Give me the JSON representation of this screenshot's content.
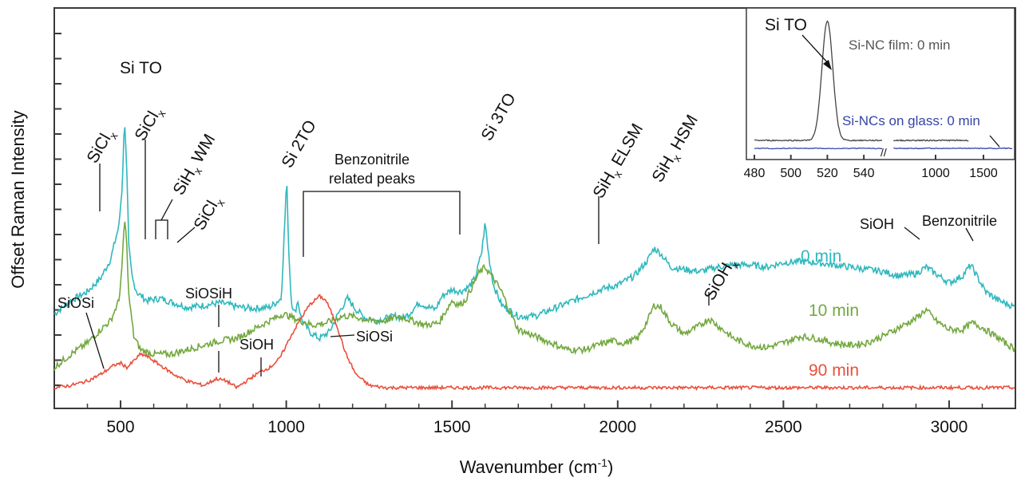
{
  "chart_data": [
    {
      "type": "line",
      "title": "",
      "xlabel_main": "Wavenumber (cm",
      "xlabel_sup": "-1",
      "xlabel_close": ")",
      "ylabel": "Offset Raman Intensity",
      "xlim": [
        300,
        3200
      ],
      "x_ticks": [
        {
          "value": 500,
          "label": "500"
        },
        {
          "value": 1000,
          "label": "1000"
        },
        {
          "value": 1500,
          "label": "1500"
        },
        {
          "value": 2000,
          "label": "2000"
        },
        {
          "value": 2500,
          "label": "2500"
        },
        {
          "value": 3000,
          "label": "3000"
        }
      ],
      "series": [
        {
          "name": "0 min",
          "color": "#2fb8bd",
          "offset": 1.0,
          "points": [
            [
              300,
              0.66
            ],
            [
              350,
              0.78
            ],
            [
              400,
              0.86
            ],
            [
              440,
              0.98
            ],
            [
              470,
              1.15
            ],
            [
              495,
              1.45
            ],
            [
              505,
              1.8
            ],
            [
              512,
              2.42
            ],
            [
              518,
              2.02
            ],
            [
              525,
              1.25
            ],
            [
              535,
              0.98
            ],
            [
              550,
              0.85
            ],
            [
              580,
              0.78
            ],
            [
              620,
              0.8
            ],
            [
              660,
              0.76
            ],
            [
              700,
              0.72
            ],
            [
              760,
              0.74
            ],
            [
              800,
              0.76
            ],
            [
              860,
              0.72
            ],
            [
              900,
              0.71
            ],
            [
              950,
              0.72
            ],
            [
              985,
              0.8
            ],
            [
              995,
              1.45
            ],
            [
              1001,
              1.88
            ],
            [
              1008,
              1.2
            ],
            [
              1015,
              0.78
            ],
            [
              1025,
              0.66
            ],
            [
              1035,
              0.78
            ],
            [
              1045,
              0.62
            ],
            [
              1070,
              0.5
            ],
            [
              1100,
              0.44
            ],
            [
              1130,
              0.5
            ],
            [
              1160,
              0.68
            ],
            [
              1185,
              0.8
            ],
            [
              1210,
              0.7
            ],
            [
              1240,
              0.62
            ],
            [
              1270,
              0.6
            ],
            [
              1300,
              0.62
            ],
            [
              1330,
              0.64
            ],
            [
              1350,
              0.62
            ],
            [
              1370,
              0.66
            ],
            [
              1400,
              0.76
            ],
            [
              1430,
              0.72
            ],
            [
              1450,
              0.7
            ],
            [
              1470,
              0.82
            ],
            [
              1500,
              0.88
            ],
            [
              1525,
              0.86
            ],
            [
              1550,
              0.9
            ],
            [
              1570,
              0.98
            ],
            [
              1590,
              1.22
            ],
            [
              1600,
              1.48
            ],
            [
              1610,
              1.2
            ],
            [
              1625,
              0.92
            ],
            [
              1650,
              0.74
            ],
            [
              1700,
              0.64
            ],
            [
              1750,
              0.64
            ],
            [
              1800,
              0.7
            ],
            [
              1850,
              0.76
            ],
            [
              1900,
              0.82
            ],
            [
              1950,
              0.88
            ],
            [
              2000,
              0.92
            ],
            [
              2050,
              1.0
            ],
            [
              2090,
              1.14
            ],
            [
              2110,
              1.25
            ],
            [
              2130,
              1.2
            ],
            [
              2160,
              1.08
            ],
            [
              2200,
              1.06
            ],
            [
              2250,
              1.04
            ],
            [
              2300,
              1.08
            ],
            [
              2350,
              1.1
            ],
            [
              2400,
              1.1
            ],
            [
              2450,
              1.08
            ],
            [
              2500,
              1.12
            ],
            [
              2550,
              1.13
            ],
            [
              2600,
              1.12
            ],
            [
              2650,
              1.1
            ],
            [
              2700,
              1.08
            ],
            [
              2750,
              1.06
            ],
            [
              2800,
              1.04
            ],
            [
              2850,
              1.0
            ],
            [
              2900,
              1.02
            ],
            [
              2930,
              1.08
            ],
            [
              2960,
              1.02
            ],
            [
              3000,
              0.94
            ],
            [
              3040,
              1.0
            ],
            [
              3065,
              1.1
            ],
            [
              3080,
              1.02
            ],
            [
              3110,
              0.86
            ],
            [
              3150,
              0.78
            ],
            [
              3200,
              0.72
            ]
          ]
        },
        {
          "name": "10 min",
          "color": "#72a83d",
          "offset": 0.5,
          "points": [
            [
              300,
              0.18
            ],
            [
              350,
              0.3
            ],
            [
              400,
              0.4
            ],
            [
              440,
              0.52
            ],
            [
              470,
              0.6
            ],
            [
              495,
              0.78
            ],
            [
              505,
              1.1
            ],
            [
              512,
              1.52
            ],
            [
              518,
              1.32
            ],
            [
              525,
              0.82
            ],
            [
              540,
              0.46
            ],
            [
              560,
              0.34
            ],
            [
              600,
              0.3
            ],
            [
              650,
              0.3
            ],
            [
              700,
              0.34
            ],
            [
              750,
              0.38
            ],
            [
              800,
              0.42
            ],
            [
              850,
              0.44
            ],
            [
              900,
              0.52
            ],
            [
              950,
              0.6
            ],
            [
              990,
              0.66
            ],
            [
              1010,
              0.64
            ],
            [
              1040,
              0.6
            ],
            [
              1080,
              0.56
            ],
            [
              1120,
              0.58
            ],
            [
              1170,
              0.64
            ],
            [
              1200,
              0.64
            ],
            [
              1250,
              0.6
            ],
            [
              1300,
              0.6
            ],
            [
              1340,
              0.64
            ],
            [
              1380,
              0.6
            ],
            [
              1420,
              0.56
            ],
            [
              1460,
              0.58
            ],
            [
              1480,
              0.68
            ],
            [
              1500,
              0.78
            ],
            [
              1520,
              0.74
            ],
            [
              1540,
              0.78
            ],
            [
              1560,
              0.9
            ],
            [
              1580,
              1.02
            ],
            [
              1600,
              1.08
            ],
            [
              1620,
              1.0
            ],
            [
              1650,
              0.86
            ],
            [
              1680,
              0.64
            ],
            [
              1700,
              0.52
            ],
            [
              1750,
              0.46
            ],
            [
              1800,
              0.4
            ],
            [
              1850,
              0.34
            ],
            [
              1900,
              0.34
            ],
            [
              1940,
              0.38
            ],
            [
              1980,
              0.42
            ],
            [
              2020,
              0.4
            ],
            [
              2060,
              0.44
            ],
            [
              2090,
              0.6
            ],
            [
              2110,
              0.74
            ],
            [
              2130,
              0.72
            ],
            [
              2160,
              0.58
            ],
            [
              2200,
              0.48
            ],
            [
              2250,
              0.56
            ],
            [
              2275,
              0.62
            ],
            [
              2300,
              0.56
            ],
            [
              2350,
              0.44
            ],
            [
              2400,
              0.38
            ],
            [
              2450,
              0.36
            ],
            [
              2500,
              0.4
            ],
            [
              2550,
              0.46
            ],
            [
              2600,
              0.44
            ],
            [
              2650,
              0.4
            ],
            [
              2700,
              0.38
            ],
            [
              2750,
              0.4
            ],
            [
              2800,
              0.46
            ],
            [
              2850,
              0.54
            ],
            [
              2900,
              0.62
            ],
            [
              2930,
              0.7
            ],
            [
              2960,
              0.6
            ],
            [
              3000,
              0.52
            ],
            [
              3040,
              0.52
            ],
            [
              3070,
              0.58
            ],
            [
              3100,
              0.54
            ],
            [
              3150,
              0.44
            ],
            [
              3200,
              0.34
            ]
          ]
        },
        {
          "name": "90 min",
          "color": "#ea4f3b",
          "offset": 0.0,
          "points": [
            [
              300,
              0.0
            ],
            [
              350,
              0.02
            ],
            [
              400,
              0.06
            ],
            [
              440,
              0.12
            ],
            [
              480,
              0.2
            ],
            [
              500,
              0.22
            ],
            [
              520,
              0.18
            ],
            [
              540,
              0.24
            ],
            [
              560,
              0.3
            ],
            [
              580,
              0.28
            ],
            [
              620,
              0.2
            ],
            [
              660,
              0.12
            ],
            [
              700,
              0.06
            ],
            [
              750,
              0.02
            ],
            [
              790,
              0.08
            ],
            [
              820,
              0.06
            ],
            [
              850,
              0.0
            ],
            [
              880,
              0.06
            ],
            [
              920,
              0.14
            ],
            [
              950,
              0.18
            ],
            [
              980,
              0.26
            ],
            [
              1010,
              0.44
            ],
            [
              1040,
              0.6
            ],
            [
              1070,
              0.74
            ],
            [
              1100,
              0.82
            ],
            [
              1120,
              0.78
            ],
            [
              1150,
              0.58
            ],
            [
              1180,
              0.3
            ],
            [
              1210,
              0.12
            ],
            [
              1250,
              0.02
            ],
            [
              1300,
              0.0
            ],
            [
              1400,
              0.0
            ],
            [
              1500,
              0.0
            ],
            [
              1600,
              0.0
            ],
            [
              1700,
              0.0
            ],
            [
              1800,
              0.0
            ],
            [
              1900,
              0.0
            ],
            [
              2000,
              0.0
            ],
            [
              2100,
              0.0
            ],
            [
              2200,
              0.0
            ],
            [
              2300,
              0.0
            ],
            [
              2400,
              0.0
            ],
            [
              2500,
              0.0
            ],
            [
              2600,
              0.0
            ],
            [
              2700,
              0.0
            ],
            [
              2800,
              0.0
            ],
            [
              2900,
              0.0
            ],
            [
              3000,
              0.0
            ],
            [
              3100,
              0.0
            ],
            [
              3200,
              0.0
            ]
          ]
        }
      ]
    },
    {
      "type": "line",
      "inset": true,
      "x_ticks_left": [
        {
          "value": 480,
          "label": "480"
        },
        {
          "value": 500,
          "label": "500"
        },
        {
          "value": 520,
          "label": "520"
        },
        {
          "value": 540,
          "label": "540"
        }
      ],
      "x_ticks_right": [
        {
          "value": 1000,
          "label": "1000"
        },
        {
          "value": 1500,
          "label": "1500"
        }
      ],
      "series": [
        {
          "name": "Si-NC film: 0 min",
          "color": "#444444"
        },
        {
          "name": "Si-NCs on glass: 0 min",
          "color": "#3344aa"
        }
      ],
      "annotation": "Si TO"
    }
  ],
  "annotations": {
    "sicl_1": "SiCl",
    "sicl_1_sub": "x",
    "si_to": "Si TO",
    "sicl_2": "SiCl",
    "sicl_2_sub": "x",
    "sih_wm": "SiH",
    "sih_wm_sub": "x",
    "sih_wm_rest": " WM",
    "sicl_3": "SiCl",
    "sicl_3_sub": "x",
    "si_2to": "Si 2TO",
    "benzo_1": "Benzonitrile",
    "benzo_2": "related peaks",
    "si_3to": "Si 3TO",
    "sih_elsm": "SiH",
    "sih_elsm_sub": "x",
    "sih_elsm_rest": " ELSM",
    "sih_hsm": "SiH",
    "sih_hsm_sub": "x",
    "sih_hsm_rest": " HSM",
    "sioh_top": "SiOH",
    "benzonitrile": "Benzonitrile",
    "sioh_x": "SiOH",
    "sioh_x_sub": "x",
    "siosi_left": "SiOSi",
    "siosih": "SiOSiH",
    "sioh_bottom": "SiOH",
    "siosi_right": "SiOSi"
  }
}
